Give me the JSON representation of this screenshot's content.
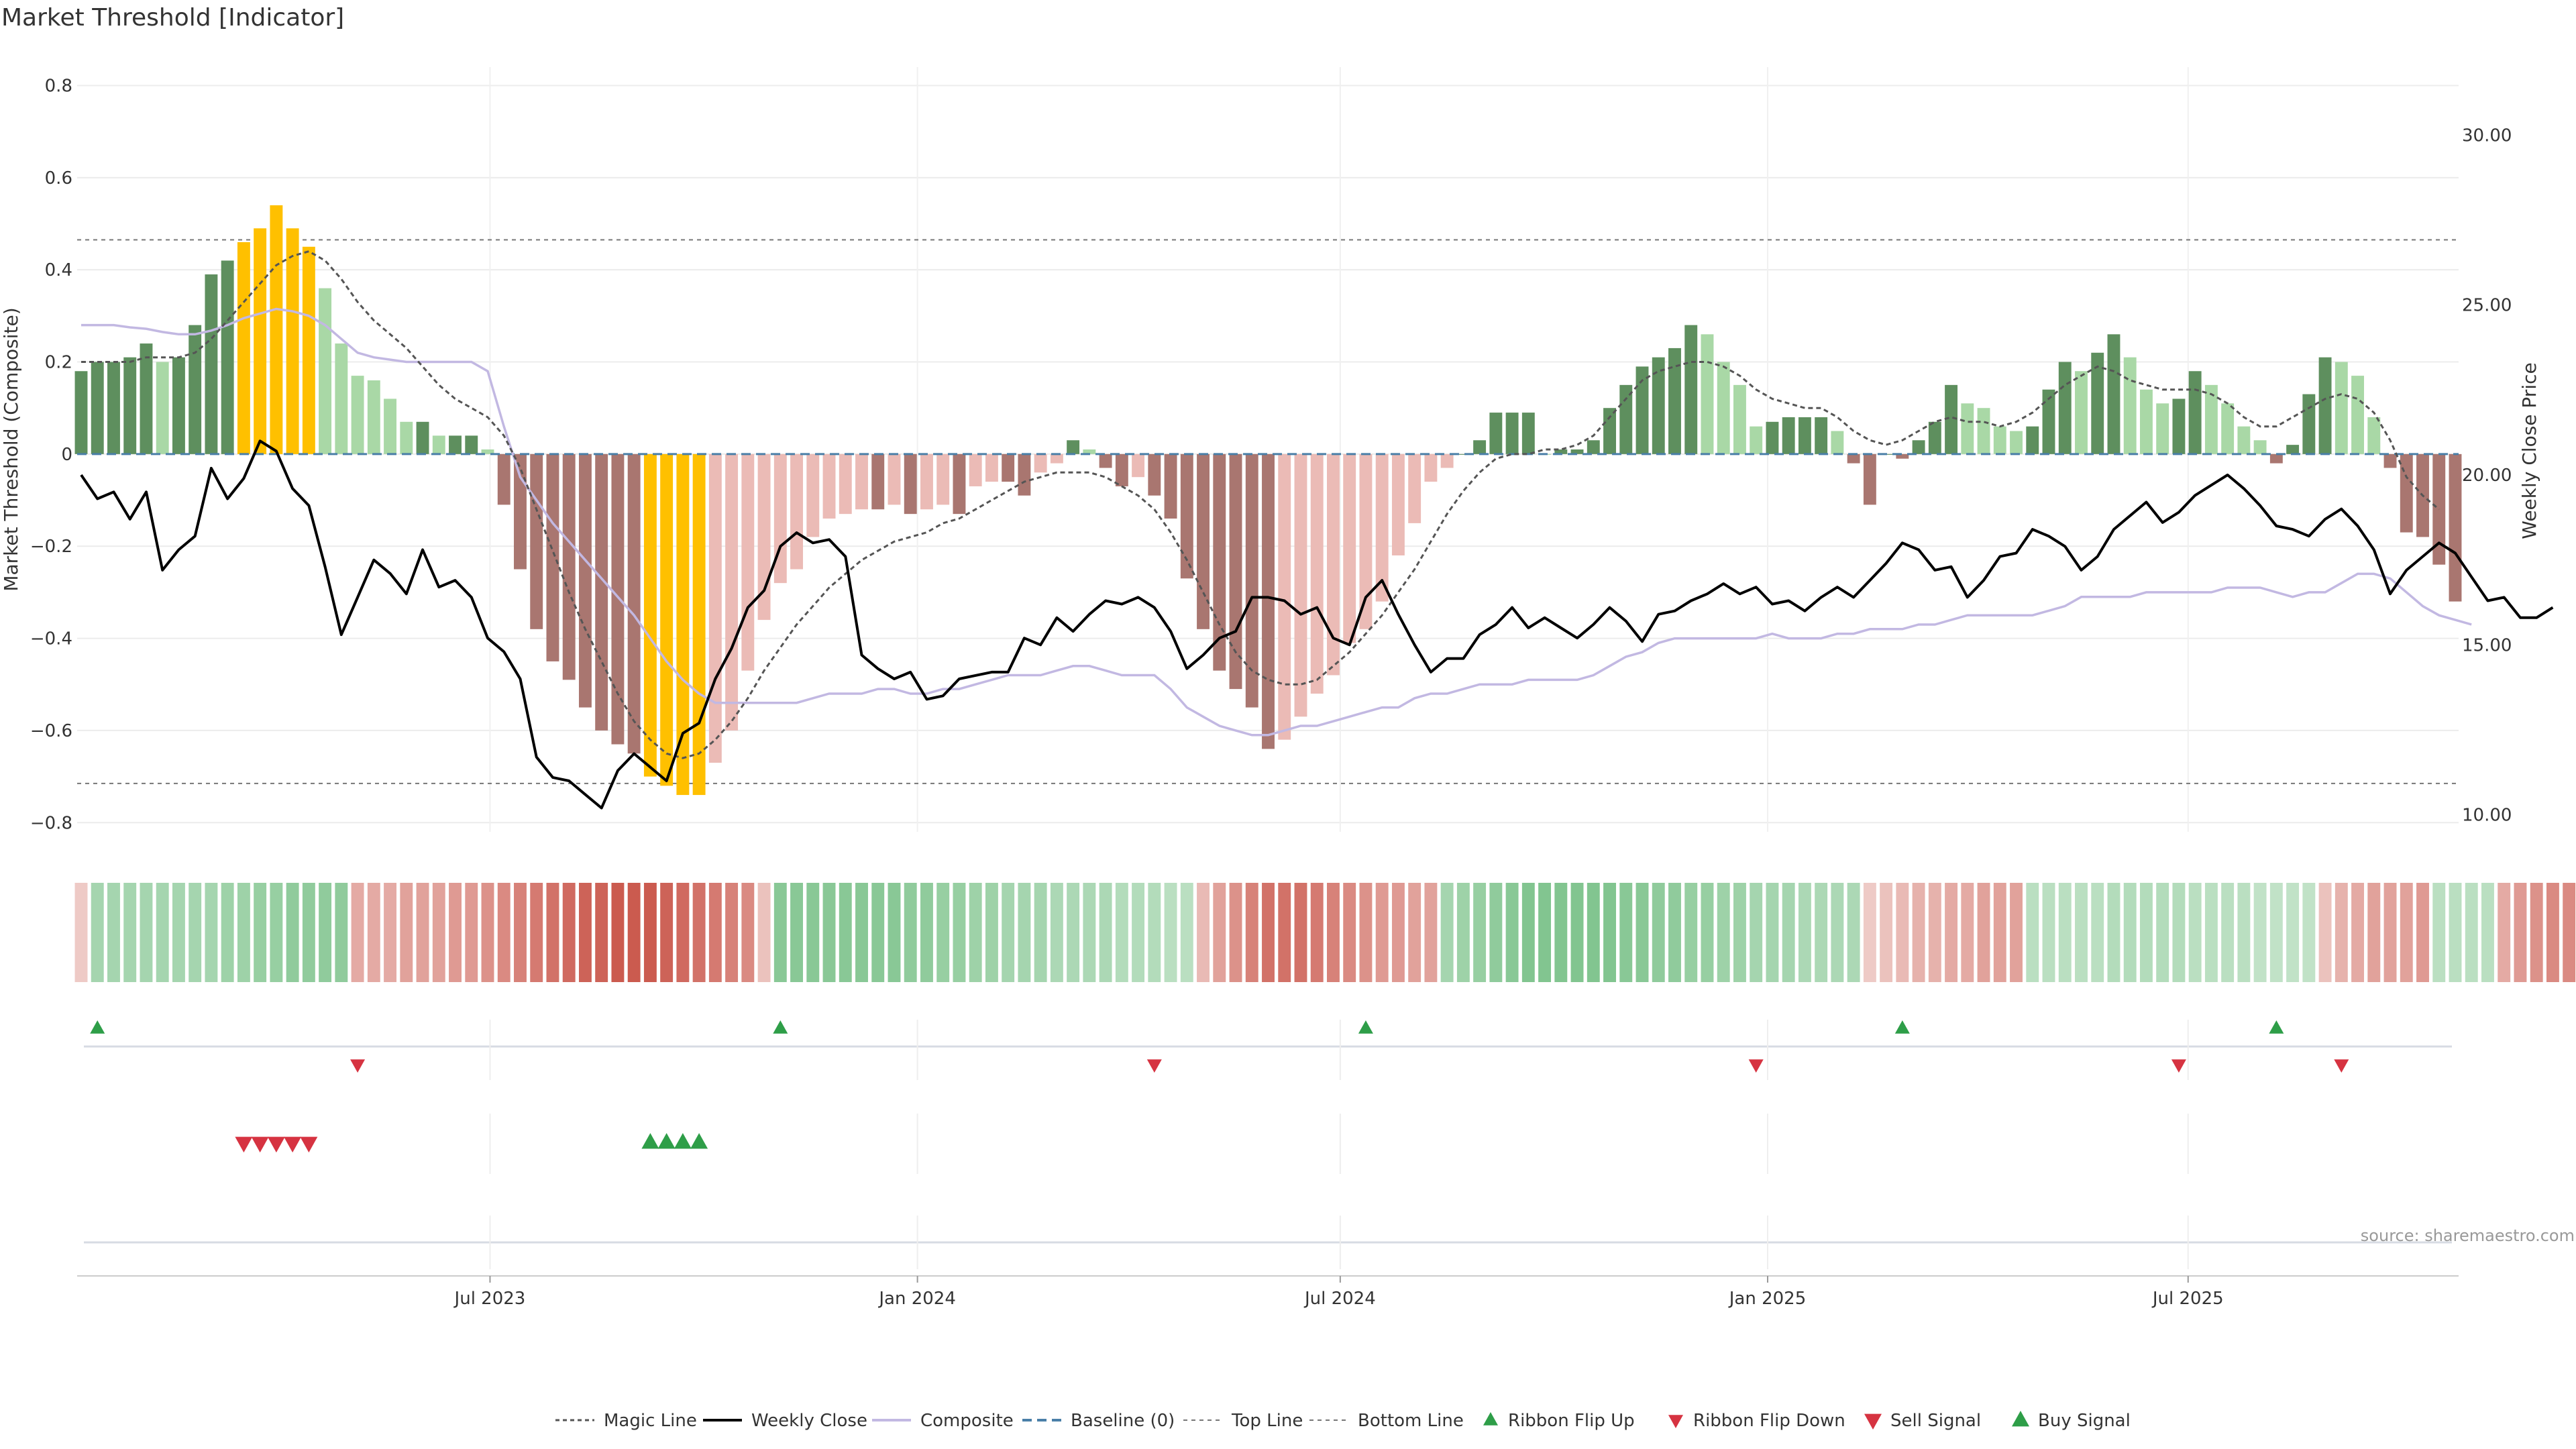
{
  "title": "Market Threshold [Indicator]",
  "source": "source: sharemaestro.com",
  "colors": {
    "bar_pos_strong": "#5e8f5e",
    "bar_pos_weak": "#a9d8a6",
    "bar_neg_strong": "#a97670",
    "bar_neg_weak": "#ebbbb6",
    "bar_extreme": "#ffc000",
    "weekly_close": "#000000",
    "magic_line": "#555555",
    "composite": "#c2b8e2",
    "baseline": "#4a7fa8",
    "threshold_line": "#777777",
    "buy": "#2e9e48",
    "sell": "#d63341"
  },
  "chart_data": {
    "type": "bar",
    "x_start": "2023-01-06",
    "x_interval": "weekly",
    "x_ticks": [
      "Jul 2023",
      "Jan 2024",
      "Jul 2024",
      "Jan 2025",
      "Jul 2025"
    ],
    "left_axis": {
      "label": "Market Threshold (Composite)",
      "ylim": [
        -0.82,
        0.84
      ],
      "ticks": [
        "0.8",
        "0.6",
        "0.4",
        "0.2",
        "0",
        "−0.2",
        "−0.4",
        "−0.6",
        "−0.8"
      ],
      "tick_values": [
        0.8,
        0.6,
        0.4,
        0.2,
        0,
        -0.2,
        -0.4,
        -0.6,
        -0.8
      ]
    },
    "right_axis": {
      "label": "Weekly Close Price",
      "ylim": [
        9.5,
        32.0
      ],
      "ticks": [
        "30.00",
        "25.00",
        "20.00",
        "15.00",
        "10.00"
      ],
      "tick_values": [
        30,
        25,
        20,
        15,
        10
      ]
    },
    "top_line": 0.465,
    "bottom_line": -0.715,
    "composite_histogram": [
      0.18,
      0.2,
      0.2,
      0.21,
      0.24,
      0.2,
      0.21,
      0.28,
      0.39,
      0.42,
      0.46,
      0.49,
      0.54,
      0.49,
      0.45,
      0.36,
      0.24,
      0.17,
      0.16,
      0.12,
      0.07,
      0.07,
      0.04,
      0.04,
      0.04,
      0.01,
      -0.11,
      -0.25,
      -0.38,
      -0.45,
      -0.49,
      -0.55,
      -0.6,
      -0.63,
      -0.65,
      -0.7,
      -0.72,
      -0.74,
      -0.74,
      -0.67,
      -0.6,
      -0.47,
      -0.36,
      -0.28,
      -0.25,
      -0.18,
      -0.14,
      -0.13,
      -0.12,
      -0.12,
      -0.11,
      -0.13,
      -0.12,
      -0.11,
      -0.13,
      -0.07,
      -0.06,
      -0.06,
      -0.09,
      -0.04,
      -0.02,
      0.03,
      0.01,
      -0.03,
      -0.07,
      -0.05,
      -0.09,
      -0.14,
      -0.27,
      -0.38,
      -0.47,
      -0.51,
      -0.55,
      -0.64,
      -0.62,
      -0.57,
      -0.52,
      -0.48,
      -0.41,
      -0.38,
      -0.32,
      -0.22,
      -0.15,
      -0.06,
      -0.03,
      0.0,
      0.03,
      0.09,
      0.09,
      0.09,
      0.0,
      0.01,
      0.01,
      0.03,
      0.1,
      0.15,
      0.19,
      0.21,
      0.23,
      0.28,
      0.26,
      0.2,
      0.15,
      0.06,
      0.07,
      0.08,
      0.08,
      0.08,
      0.05,
      -0.02,
      -0.11,
      0.0,
      -0.01,
      0.03,
      0.07,
      0.15,
      0.11,
      0.1,
      0.06,
      0.05,
      0.06,
      0.14,
      0.2,
      0.18,
      0.22,
      0.26,
      0.21,
      0.14,
      0.11,
      0.12,
      0.18,
      0.15,
      0.11,
      0.06,
      0.03,
      -0.02,
      0.02,
      0.13,
      0.21,
      0.2,
      0.17,
      0.08,
      -0.03,
      -0.17,
      -0.18,
      -0.24,
      -0.32
    ],
    "bar_extreme_index_ranges": [
      [
        10,
        14
      ],
      [
        35,
        38
      ]
    ],
    "weekly_close": [
      20.0,
      19.3,
      19.5,
      18.7,
      19.5,
      17.2,
      17.8,
      18.2,
      20.2,
      19.3,
      19.9,
      21.0,
      20.7,
      19.6,
      19.1,
      17.3,
      15.3,
      16.4,
      17.5,
      17.1,
      16.5,
      17.8,
      16.7,
      16.9,
      16.4,
      15.2,
      14.8,
      14.0,
      11.7,
      11.1,
      11.0,
      10.6,
      10.2,
      11.3,
      11.8,
      11.4,
      11.0,
      12.4,
      12.7,
      14.0,
      14.9,
      16.1,
      16.6,
      17.9,
      18.3,
      18.0,
      18.1,
      17.6,
      14.7,
      14.3,
      14.0,
      14.2,
      13.4,
      13.5,
      14.0,
      14.1,
      14.2,
      14.2,
      15.2,
      15.0,
      15.8,
      15.4,
      15.9,
      16.3,
      16.2,
      16.4,
      16.1,
      15.4,
      14.3,
      14.7,
      15.2,
      15.4,
      16.4,
      16.4,
      16.3,
      15.9,
      16.1,
      15.2,
      15.0,
      16.4,
      16.9,
      15.9,
      15.0,
      14.2,
      14.6,
      14.6,
      15.3,
      15.6,
      16.1,
      15.5,
      15.8,
      15.5,
      15.2,
      15.6,
      16.1,
      15.7,
      15.1,
      15.9,
      16.0,
      16.3,
      16.5,
      16.8,
      16.5,
      16.7,
      16.2,
      16.3,
      16.0,
      16.4,
      16.7,
      16.4,
      16.9,
      17.4,
      18.0,
      17.8,
      17.2,
      17.3,
      16.4,
      16.9,
      17.6,
      17.7,
      18.4,
      18.2,
      17.9,
      17.2,
      17.6,
      18.4,
      18.8,
      19.2,
      18.6,
      18.9,
      19.4,
      19.7,
      20.0,
      19.6,
      19.1,
      18.5,
      18.4,
      18.2,
      18.7,
      19.0,
      18.5,
      17.8,
      16.5,
      17.2,
      17.6,
      18.0,
      17.7,
      17.0,
      16.3,
      16.4,
      15.8,
      15.8,
      16.1
    ],
    "magic_line": [
      0.2,
      0.2,
      0.2,
      0.2,
      0.21,
      0.21,
      0.21,
      0.22,
      0.25,
      0.29,
      0.33,
      0.37,
      0.41,
      0.43,
      0.44,
      0.42,
      0.38,
      0.33,
      0.29,
      0.26,
      0.23,
      0.19,
      0.15,
      0.12,
      0.1,
      0.08,
      0.04,
      -0.03,
      -0.12,
      -0.21,
      -0.3,
      -0.38,
      -0.45,
      -0.52,
      -0.58,
      -0.62,
      -0.65,
      -0.66,
      -0.65,
      -0.62,
      -0.58,
      -0.53,
      -0.47,
      -0.42,
      -0.37,
      -0.33,
      -0.29,
      -0.26,
      -0.23,
      -0.21,
      -0.19,
      -0.18,
      -0.17,
      -0.15,
      -0.14,
      -0.12,
      -0.1,
      -0.08,
      -0.06,
      -0.05,
      -0.04,
      -0.04,
      -0.04,
      -0.05,
      -0.07,
      -0.09,
      -0.12,
      -0.17,
      -0.23,
      -0.3,
      -0.37,
      -0.43,
      -0.47,
      -0.49,
      -0.5,
      -0.5,
      -0.49,
      -0.46,
      -0.43,
      -0.39,
      -0.35,
      -0.3,
      -0.25,
      -0.19,
      -0.13,
      -0.08,
      -0.04,
      -0.01,
      0.0,
      0.0,
      0.01,
      0.01,
      0.02,
      0.04,
      0.08,
      0.12,
      0.16,
      0.18,
      0.19,
      0.2,
      0.2,
      0.19,
      0.17,
      0.14,
      0.12,
      0.11,
      0.1,
      0.1,
      0.08,
      0.05,
      0.03,
      0.02,
      0.03,
      0.05,
      0.07,
      0.08,
      0.07,
      0.07,
      0.06,
      0.07,
      0.09,
      0.12,
      0.15,
      0.17,
      0.19,
      0.18,
      0.16,
      0.15,
      0.14,
      0.14,
      0.14,
      0.13,
      0.11,
      0.08,
      0.06,
      0.06,
      0.08,
      0.1,
      0.12,
      0.13,
      0.12,
      0.09,
      0.03,
      -0.05,
      -0.09,
      -0.12
    ],
    "composite_line": [
      0.28,
      0.28,
      0.28,
      0.275,
      0.272,
      0.265,
      0.26,
      0.26,
      0.268,
      0.28,
      0.295,
      0.305,
      0.315,
      0.31,
      0.3,
      0.28,
      0.25,
      0.22,
      0.21,
      0.205,
      0.2,
      0.2,
      0.2,
      0.2,
      0.2,
      0.18,
      0.06,
      -0.05,
      -0.1,
      -0.15,
      -0.19,
      -0.23,
      -0.27,
      -0.31,
      -0.35,
      -0.4,
      -0.45,
      -0.49,
      -0.52,
      -0.54,
      -0.54,
      -0.54,
      -0.54,
      -0.54,
      -0.54,
      -0.53,
      -0.52,
      -0.52,
      -0.52,
      -0.51,
      -0.51,
      -0.52,
      -0.52,
      -0.51,
      -0.51,
      -0.5,
      -0.49,
      -0.48,
      -0.48,
      -0.48,
      -0.47,
      -0.46,
      -0.46,
      -0.47,
      -0.48,
      -0.48,
      -0.48,
      -0.51,
      -0.55,
      -0.57,
      -0.59,
      -0.6,
      -0.61,
      -0.61,
      -0.6,
      -0.59,
      -0.59,
      -0.58,
      -0.57,
      -0.56,
      -0.55,
      -0.55,
      -0.53,
      -0.52,
      -0.52,
      -0.51,
      -0.5,
      -0.5,
      -0.5,
      -0.49,
      -0.49,
      -0.49,
      -0.49,
      -0.48,
      -0.46,
      -0.44,
      -0.43,
      -0.41,
      -0.4,
      -0.4,
      -0.4,
      -0.4,
      -0.4,
      -0.4,
      -0.39,
      -0.4,
      -0.4,
      -0.4,
      -0.39,
      -0.39,
      -0.38,
      -0.38,
      -0.38,
      -0.37,
      -0.37,
      -0.36,
      -0.35,
      -0.35,
      -0.35,
      -0.35,
      -0.35,
      -0.34,
      -0.33,
      -0.31,
      -0.31,
      -0.31,
      -0.31,
      -0.3,
      -0.3,
      -0.3,
      -0.3,
      -0.3,
      -0.29,
      -0.29,
      -0.29,
      -0.3,
      -0.31,
      -0.3,
      -0.3,
      -0.28,
      -0.26,
      -0.26,
      -0.27,
      -0.3,
      -0.33,
      -0.35,
      -0.36,
      -0.37
    ],
    "ribbon_levels": [
      -0.15,
      0.45,
      0.45,
      0.45,
      0.45,
      0.45,
      0.45,
      0.45,
      0.45,
      0.5,
      0.5,
      0.55,
      0.55,
      0.6,
      0.6,
      0.6,
      0.6,
      -0.35,
      -0.35,
      -0.35,
      -0.4,
      -0.4,
      -0.4,
      -0.45,
      -0.45,
      -0.5,
      -0.55,
      -0.6,
      -0.65,
      -0.7,
      -0.75,
      -0.8,
      -0.8,
      -0.85,
      -0.85,
      -0.85,
      -0.8,
      -0.75,
      -0.7,
      -0.65,
      -0.6,
      -0.55,
      -0.2,
      0.65,
      0.65,
      0.65,
      0.65,
      0.65,
      0.65,
      0.65,
      0.65,
      0.6,
      0.6,
      0.55,
      0.55,
      0.5,
      0.5,
      0.45,
      0.45,
      0.45,
      0.4,
      0.4,
      0.4,
      0.4,
      0.35,
      0.35,
      0.35,
      0.3,
      0.3,
      -0.25,
      -0.4,
      -0.5,
      -0.6,
      -0.7,
      -0.7,
      -0.7,
      -0.65,
      -0.6,
      -0.55,
      -0.5,
      -0.45,
      -0.45,
      -0.4,
      -0.4,
      0.45,
      0.5,
      0.55,
      0.6,
      0.65,
      0.7,
      0.7,
      0.7,
      0.7,
      0.7,
      0.7,
      0.65,
      0.65,
      0.6,
      0.6,
      0.55,
      0.55,
      0.5,
      0.5,
      0.45,
      0.45,
      0.45,
      0.4,
      0.4,
      0.4,
      0.4,
      -0.15,
      -0.2,
      -0.25,
      -0.3,
      -0.3,
      -0.35,
      -0.35,
      -0.4,
      -0.4,
      -0.4,
      0.3,
      0.3,
      0.3,
      0.3,
      0.3,
      0.35,
      0.35,
      0.35,
      0.35,
      0.35,
      0.3,
      0.3,
      0.3,
      0.3,
      0.25,
      0.25,
      0.25,
      0.25,
      -0.2,
      -0.3,
      -0.35,
      -0.4,
      -0.4,
      -0.4,
      -0.45,
      0.3,
      0.3,
      0.3,
      0.3,
      -0.35,
      -0.45,
      -0.5,
      -0.55,
      -0.55
    ],
    "ribbon_flip_up": [
      1,
      43,
      79,
      112,
      135
    ],
    "ribbon_flip_down": [
      17,
      66,
      103,
      129,
      139
    ],
    "sell_signal": [
      10,
      11,
      12,
      13,
      14
    ],
    "buy_signal": [
      35,
      36,
      37,
      38
    ],
    "legend": [
      "Magic Line",
      "Weekly Close",
      "Composite",
      "Baseline (0)",
      "Top Line",
      "Bottom Line",
      "Ribbon Flip Up",
      "Ribbon Flip Down",
      "Sell Signal",
      "Buy Signal"
    ],
    "grid": true,
    "legend_position": "bottom-center"
  }
}
